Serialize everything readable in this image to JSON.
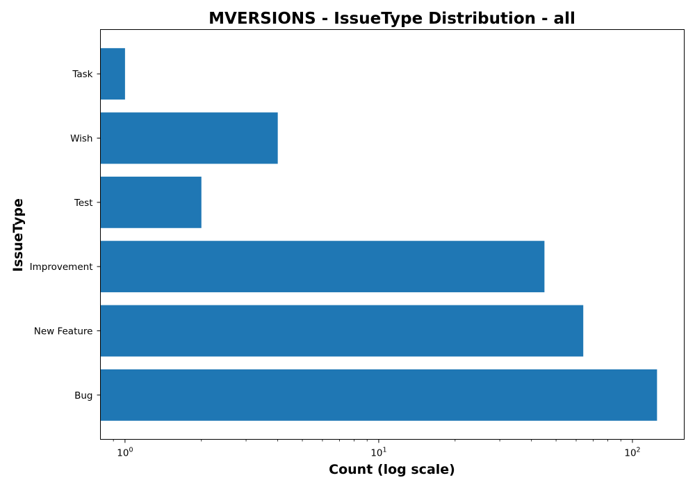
{
  "chart_data": {
    "type": "bar",
    "orientation": "horizontal",
    "title": "MVERSIONS - IssueType Distribution - all",
    "xlabel": "Count (log scale)",
    "ylabel": "IssueType",
    "x_scale": "log",
    "xlim": [
      0.8,
      160
    ],
    "grid": false,
    "categories": [
      "Task",
      "Wish",
      "Test",
      "Improvement",
      "New Feature",
      "Bug"
    ],
    "values": [
      1,
      4,
      2,
      45,
      64,
      125
    ],
    "x_ticks": [
      {
        "base": "10",
        "exp": "0",
        "value": 1
      },
      {
        "base": "10",
        "exp": "1",
        "value": 10
      },
      {
        "base": "10",
        "exp": "2",
        "value": 100
      }
    ],
    "bar_color": "#1f77b4"
  }
}
